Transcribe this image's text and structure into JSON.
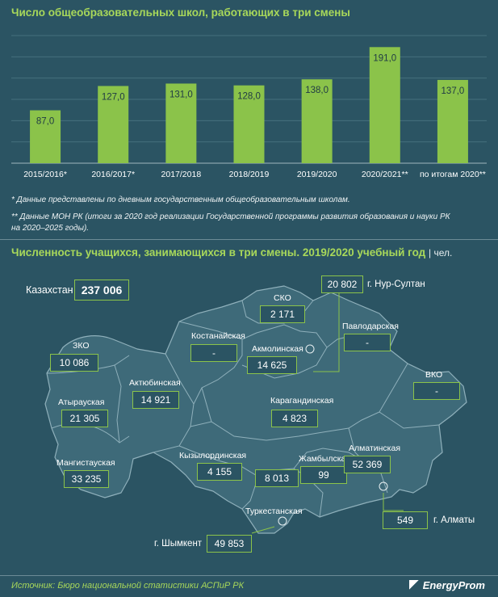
{
  "title1": "Число общеобразовательных школ, работающих в три смены",
  "chart_data": {
    "type": "bar",
    "categories": [
      "2015/2016*",
      "2016/2017*",
      "2017/2018",
      "2018/2019",
      "2019/2020",
      "2020/2021**",
      "по итогам 2020**"
    ],
    "values": [
      87,
      127,
      131,
      128,
      138,
      191,
      137
    ],
    "value_labels": [
      "87,0",
      "127,0",
      "131,0",
      "128,0",
      "138,0",
      "191,0",
      "137,0"
    ],
    "ylim": [
      0,
      210
    ],
    "grid": true,
    "bar_color": "#8bc34a"
  },
  "notes": {
    "n1": "* Данные представлены по дневным государственным общеобразовательным школам.",
    "n2a": "** Данные МОН РК (итоги за 2020 год реализации Государственной программы развития образования и науки РК",
    "n2b": "на 2020–2025 годы)."
  },
  "title2": "Численность учащихся, занимающихся в три смены. 2019/2020 учебный год",
  "title2_unit": "| чел.",
  "kazakhstan": {
    "label": "Казахстан",
    "value": "237 006"
  },
  "regions": {
    "sko": {
      "label": "СКО",
      "value": "2 171"
    },
    "nur": {
      "label": "г. Нур-Султан",
      "value": "20 802"
    },
    "kost": {
      "label": "Костанайская",
      "value": "-"
    },
    "akm": {
      "label": "Акмолинская",
      "value": "14 625"
    },
    "pav": {
      "label": "Павлодарская",
      "value": "-"
    },
    "zko": {
      "label": "ЗКО",
      "value": "10 086"
    },
    "akt": {
      "label": "Актюбинская",
      "value": "14 921"
    },
    "vko": {
      "label": "ВКО",
      "value": "-"
    },
    "atyr": {
      "label": "Атырауская",
      "value": "21 305"
    },
    "kar": {
      "label": "Карагандинская",
      "value": "4 823"
    },
    "mang": {
      "label": "Мангистауская",
      "value": "33 235"
    },
    "kyz": {
      "label": "Кызылординская",
      "value": "4 155"
    },
    "zham": {
      "label": "Жамбылская",
      "value": "99"
    },
    "alm": {
      "label": "Алматинская",
      "value": "52 369"
    },
    "turk": {
      "label": "Туркестанская",
      "value": "8 013"
    },
    "almaty": {
      "label": "г. Алматы",
      "value": "549"
    },
    "shym": {
      "label": "г. Шымкент",
      "value": "49 853"
    }
  },
  "footer": {
    "source": "Источник: Бюро национальной статистики АСПиР РК",
    "logo": "EnergyProm"
  }
}
